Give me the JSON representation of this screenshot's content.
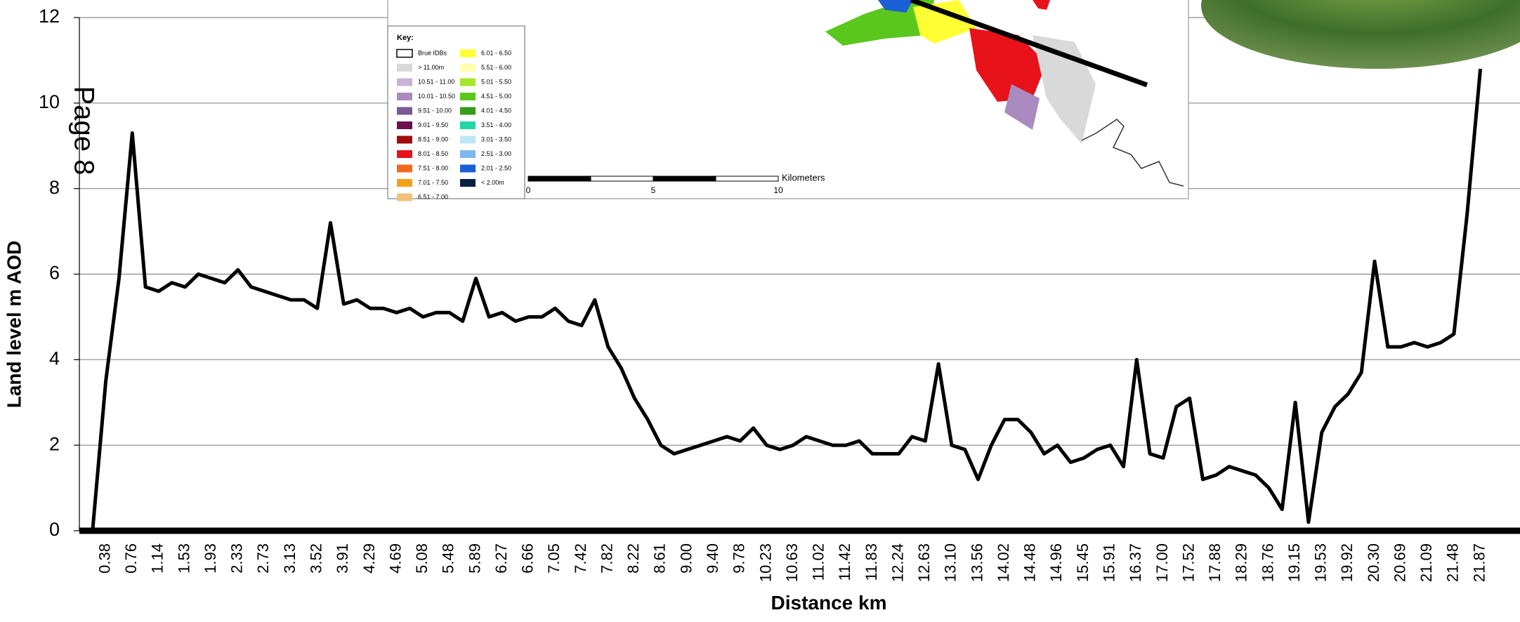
{
  "chart_data": {
    "type": "line",
    "x_label": "Distance km",
    "y_label": "Land level m AOD",
    "categories": [
      null,
      null,
      "0.38",
      null,
      "0.76",
      null,
      "1.14",
      null,
      "1.53",
      null,
      "1.93",
      null,
      "2.33",
      null,
      "2.73",
      null,
      "3.13",
      null,
      "3.52",
      null,
      "3.91",
      null,
      "4.29",
      null,
      "4.69",
      null,
      "5.08",
      null,
      "5.48",
      null,
      "5.89",
      null,
      "6.27",
      null,
      "6.66",
      null,
      "7.05",
      null,
      "7.42",
      null,
      "7.82",
      null,
      "8.22",
      null,
      "8.61",
      null,
      "9.00",
      null,
      "9.40",
      null,
      "9.78",
      null,
      "10.23",
      null,
      "10.63",
      null,
      "11.02",
      null,
      "11.42",
      null,
      "11.83",
      null,
      "12.24",
      null,
      "12.63",
      null,
      "13.10",
      null,
      "13.56",
      null,
      "14.02",
      null,
      "14.48",
      null,
      "14.96",
      null,
      "15.45",
      null,
      "15.91",
      null,
      "16.37",
      null,
      "17.00",
      null,
      "17.52",
      null,
      "17.88",
      null,
      "18.29",
      null,
      "18.76",
      null,
      "19.15",
      null,
      "19.53",
      null,
      "19.92",
      null,
      "20.30",
      null,
      "20.69",
      null,
      "21.09",
      null,
      "21.48",
      null,
      "21.87",
      null,
      null,
      null
    ],
    "values": [
      0,
      0,
      3.5,
      5.9,
      9.3,
      5.7,
      5.6,
      5.8,
      5.7,
      6.0,
      5.9,
      5.8,
      6.1,
      5.7,
      5.6,
      5.5,
      5.4,
      5.4,
      5.2,
      7.2,
      5.3,
      5.4,
      5.2,
      5.2,
      5.1,
      5.2,
      5.0,
      5.1,
      5.1,
      4.9,
      5.9,
      5.0,
      5.1,
      4.9,
      5.0,
      5.0,
      5.2,
      4.9,
      4.8,
      5.4,
      4.3,
      3.8,
      3.1,
      2.6,
      2.0,
      1.8,
      1.9,
      2.0,
      2.1,
      2.2,
      2.1,
      2.4,
      2.0,
      1.9,
      2.0,
      2.2,
      2.1,
      2.0,
      2.0,
      2.1,
      1.8,
      1.8,
      1.8,
      2.2,
      2.1,
      3.9,
      2.0,
      1.9,
      1.2,
      2.0,
      2.6,
      2.6,
      2.3,
      1.8,
      2.0,
      1.6,
      1.7,
      1.9,
      2.0,
      1.5,
      4.0,
      1.8,
      1.7,
      2.9,
      3.1,
      1.2,
      1.3,
      1.5,
      1.4,
      1.3,
      1.0,
      0.5,
      3.0,
      0.2,
      2.3,
      2.9,
      3.2,
      3.7,
      6.3,
      4.3,
      4.3,
      4.4,
      4.3,
      4.4,
      4.6,
      7.4,
      10.8,
      null,
      null,
      null
    ],
    "color": "#000000",
    "ylim": [
      0,
      12
    ],
    "yticks": [
      0,
      2,
      4,
      6,
      8,
      10,
      12
    ],
    "grid": true
  },
  "page_label": "Page 8",
  "inset_map": {
    "key": {
      "title": "Key:",
      "items": [
        {
          "label": "Brue IDBs",
          "color": "#ffffff"
        },
        {
          "label": "> 11.00m",
          "color": "#d9d9d9"
        },
        {
          "label": "10.51 - 11.00",
          "color": "#c9b3d6"
        },
        {
          "label": "10.01 - 10.50",
          "color": "#a98bbf"
        },
        {
          "label": "9.51 - 10.00",
          "color": "#7a5a96"
        },
        {
          "label": "9.01 - 9.50",
          "color": "#6b0f4f"
        },
        {
          "label": "8.51 - 9.00",
          "color": "#a00d0d"
        },
        {
          "label": "8.01 - 8.50",
          "color": "#e8121a"
        },
        {
          "label": "7.51 - 8.00",
          "color": "#f26b1d"
        },
        {
          "label": "7.01 - 7.50",
          "color": "#f5a01a"
        },
        {
          "label": "6.51 - 7.00",
          "color": "#f0c27a"
        },
        {
          "label": "6.01 - 6.50",
          "color": "#ffff33"
        },
        {
          "label": "5.51 - 6.00",
          "color": "#ffffb0"
        },
        {
          "label": "5.01 - 5.50",
          "color": "#a5e62a"
        },
        {
          "label": "4.51 - 5.00",
          "color": "#5ac71d"
        },
        {
          "label": "4.01 - 4.50",
          "color": "#3a9a1a"
        },
        {
          "label": "3.51 - 4.00",
          "color": "#22d6a5"
        },
        {
          "label": "3.01 - 3.50",
          "color": "#bfe6f5"
        },
        {
          "label": "2.51 - 3.00",
          "color": "#7fb6ee"
        },
        {
          "label": "2.01 - 2.50",
          "color": "#1a5fd6"
        },
        {
          "label": "< 2.00m",
          "color": "#0a2040"
        }
      ]
    },
    "scale": {
      "ticks": [
        0,
        5,
        10
      ],
      "unit": "Kilometers"
    }
  }
}
